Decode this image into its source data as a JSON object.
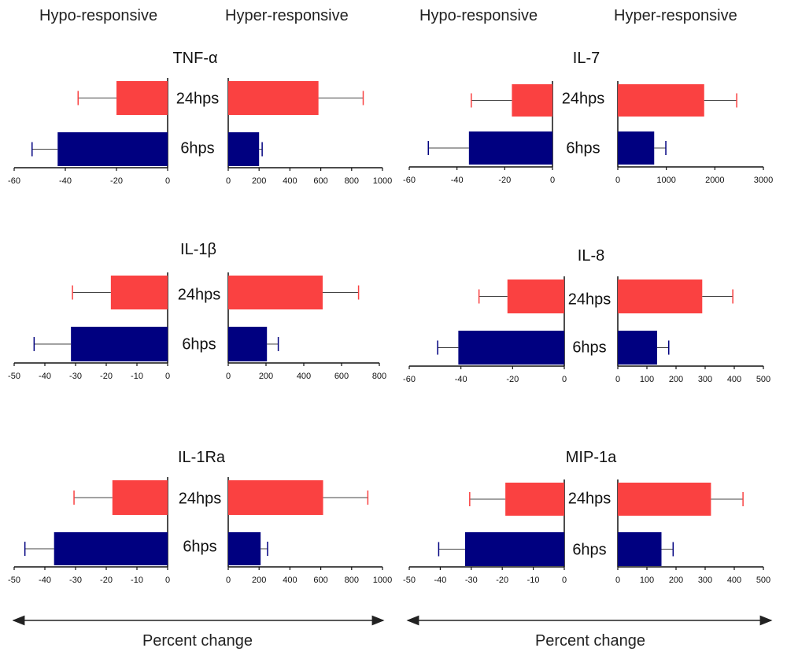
{
  "headers": {
    "hypo_left": "Hypo-responsive",
    "hyper_left": "Hyper-responsive",
    "hypo_right": "Hypo-responsive",
    "hyper_right": "Hyper-responsive"
  },
  "footer": {
    "left_label": "Percent change",
    "right_label": "Percent change"
  },
  "colors": {
    "hps24": "#fa4141",
    "hps6": "#000080"
  },
  "chart_data": [
    {
      "type": "bar",
      "title": "TNF-α",
      "categories": [
        "24hps",
        "6hps"
      ],
      "hypo": {
        "values": [
          -20,
          -43
        ],
        "errors": [
          15,
          10
        ],
        "xlim": [
          -60,
          0
        ],
        "ticks": [
          "-60",
          "-40",
          "-20",
          "0"
        ]
      },
      "hyper": {
        "values": [
          585,
          200
        ],
        "errors": [
          290,
          20
        ],
        "xlim": [
          0,
          1000
        ],
        "ticks": [
          "0",
          "200",
          "400",
          "600",
          "800",
          "1000"
        ]
      }
    },
    {
      "type": "bar",
      "title": "IL-7",
      "categories": [
        "24hps",
        "6hps"
      ],
      "hypo": {
        "values": [
          -17,
          -35
        ],
        "errors": [
          17,
          17
        ],
        "xlim": [
          -60,
          0
        ],
        "ticks": [
          "-60",
          "-40",
          "-20",
          "0"
        ]
      },
      "hyper": {
        "values": [
          1780,
          750
        ],
        "errors": [
          670,
          240
        ],
        "xlim": [
          0,
          3000
        ],
        "ticks": [
          "0",
          "1000",
          "2000",
          "3000"
        ]
      }
    },
    {
      "type": "bar",
      "title": "IL-1β",
      "categories": [
        "24hps",
        "6hps"
      ],
      "hypo": {
        "values": [
          -18.5,
          -31.5
        ],
        "errors": [
          12.5,
          12
        ],
        "xlim": [
          -50,
          0
        ],
        "ticks": [
          "-50",
          "-40",
          "-30",
          "-20",
          "-10",
          "0"
        ]
      },
      "hyper": {
        "values": [
          500,
          205
        ],
        "errors": [
          190,
          60
        ],
        "xlim": [
          0,
          800
        ],
        "ticks": [
          "0",
          "200",
          "400",
          "600",
          "800"
        ]
      }
    },
    {
      "type": "bar",
      "title": "IL-8",
      "categories": [
        "24hps",
        "6hps"
      ],
      "hypo": {
        "values": [
          -22,
          -41
        ],
        "errors": [
          11,
          8
        ],
        "xlim": [
          -60,
          0
        ],
        "ticks": [
          "-60",
          "-40",
          "-20",
          "0"
        ]
      },
      "hyper": {
        "values": [
          290,
          135
        ],
        "errors": [
          105,
          40
        ],
        "xlim": [
          0,
          500
        ],
        "ticks": [
          "0",
          "100",
          "200",
          "300",
          "400",
          "500"
        ]
      }
    },
    {
      "type": "bar",
      "title": "IL-1Ra",
      "categories": [
        "24hps",
        "6hps"
      ],
      "hypo": {
        "values": [
          -18,
          -37
        ],
        "errors": [
          12.5,
          9.5
        ],
        "xlim": [
          -50,
          0
        ],
        "ticks": [
          "-50",
          "-40",
          "-30",
          "-20",
          "-10",
          "0"
        ]
      },
      "hyper": {
        "values": [
          615,
          210
        ],
        "errors": [
          290,
          45
        ],
        "xlim": [
          0,
          1000
        ],
        "ticks": [
          "0",
          "200",
          "400",
          "600",
          "800",
          "1000"
        ]
      }
    },
    {
      "type": "bar",
      "title": "MIP-1a",
      "categories": [
        "24hps",
        "6hps"
      ],
      "hypo": {
        "values": [
          -19,
          -32
        ],
        "errors": [
          11.5,
          8.5
        ],
        "xlim": [
          -50,
          0
        ],
        "ticks": [
          "-50",
          "-40",
          "-30",
          "-20",
          "-10",
          "0"
        ]
      },
      "hyper": {
        "values": [
          320,
          150
        ],
        "errors": [
          110,
          40
        ],
        "xlim": [
          0,
          500
        ],
        "ticks": [
          "0",
          "100",
          "200",
          "300",
          "400",
          "500"
        ]
      }
    }
  ]
}
